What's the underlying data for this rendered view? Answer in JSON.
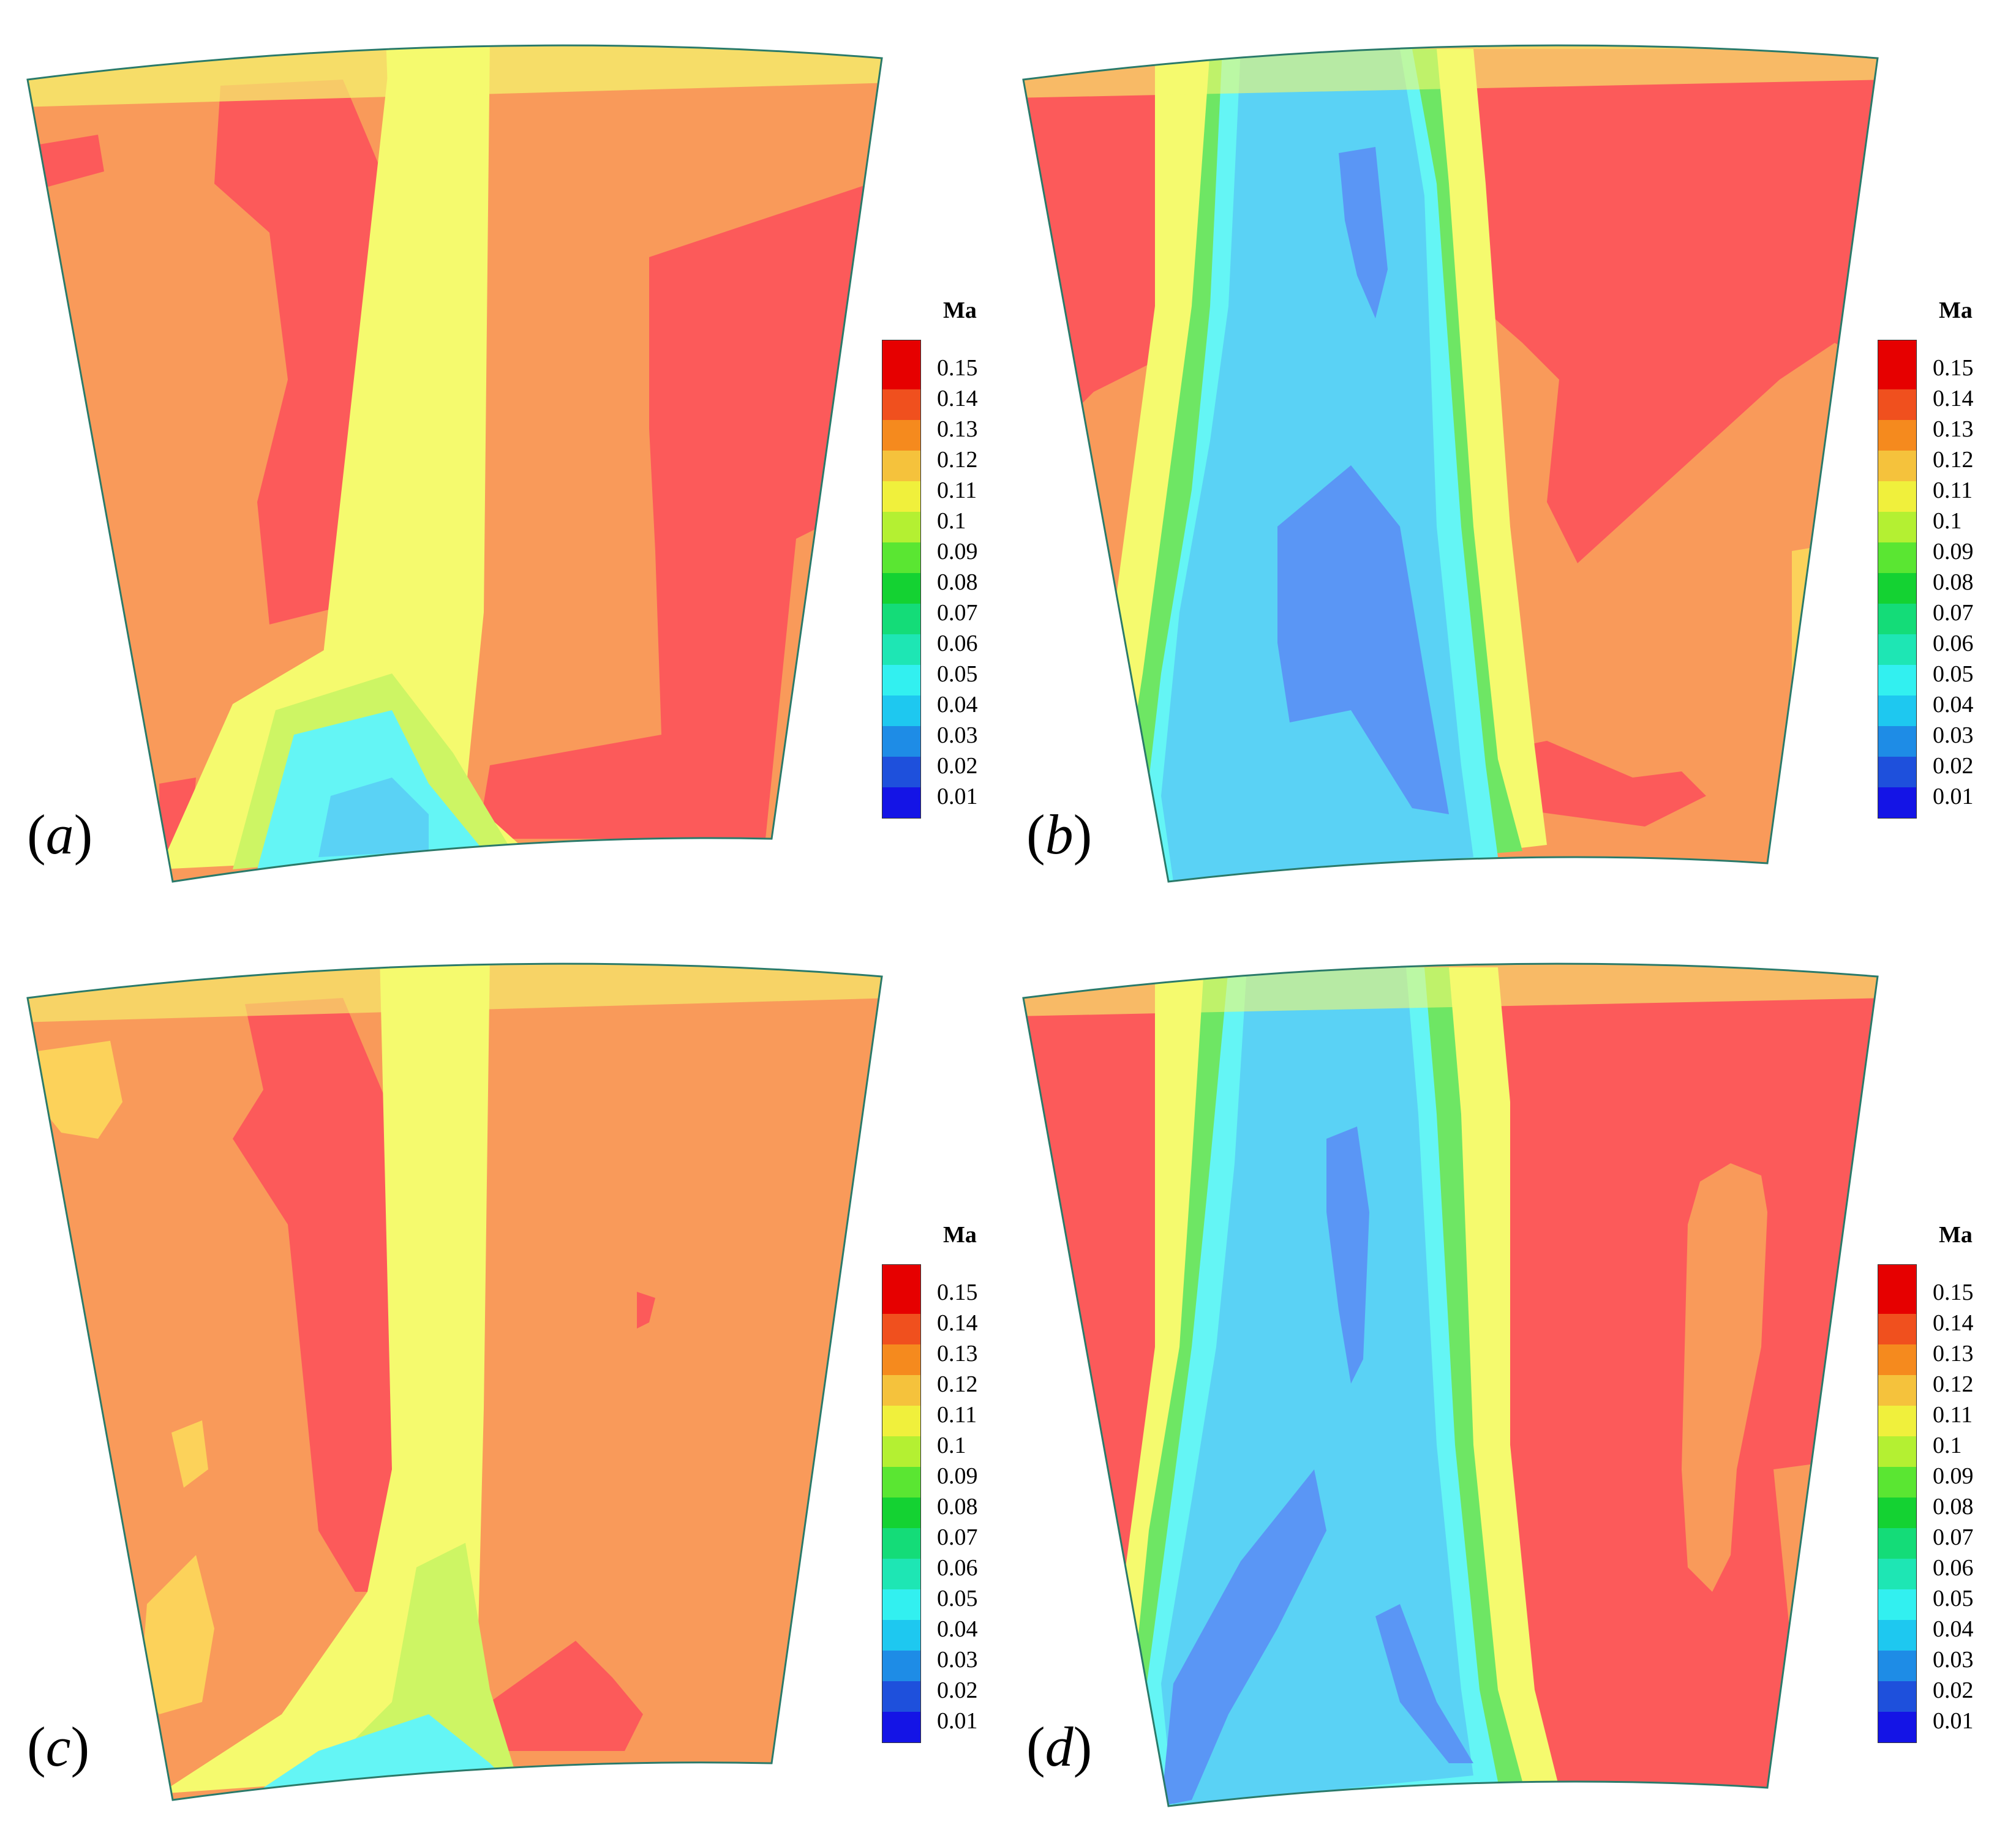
{
  "figure": {
    "panels": [
      {
        "id": "a",
        "label_letter": "a"
      },
      {
        "id": "b",
        "label_letter": "b"
      },
      {
        "id": "c",
        "label_letter": "c"
      },
      {
        "id": "d",
        "label_letter": "d"
      }
    ]
  },
  "legend": {
    "title": "Ma",
    "ticks": [
      "0.15",
      "0.14",
      "0.13",
      "0.12",
      "0.11",
      "0.1",
      "0.09",
      "0.08",
      "0.07",
      "0.06",
      "0.05",
      "0.04",
      "0.03",
      "0.02",
      "0.01"
    ],
    "colors": [
      "#e60000",
      "#f0501e",
      "#f58a1e",
      "#f5c23c",
      "#f0f03c",
      "#b4f032",
      "#5ae632",
      "#14d232",
      "#14dc78",
      "#1ee6b4",
      "#32f0f0",
      "#1ec8f0",
      "#1e8ce6",
      "#1e50dc",
      "#1414e6"
    ]
  },
  "palette": {
    "red": "#fc5a5a",
    "orange": "#f99a5a",
    "lightorange": "#fcd25a",
    "yellow": "#f5fa6e",
    "lime": "#cdf564",
    "green": "#6ee664",
    "cyan": "#64f5f5",
    "lightblue": "#5ad2f5",
    "blue": "#5a96f5"
  }
}
